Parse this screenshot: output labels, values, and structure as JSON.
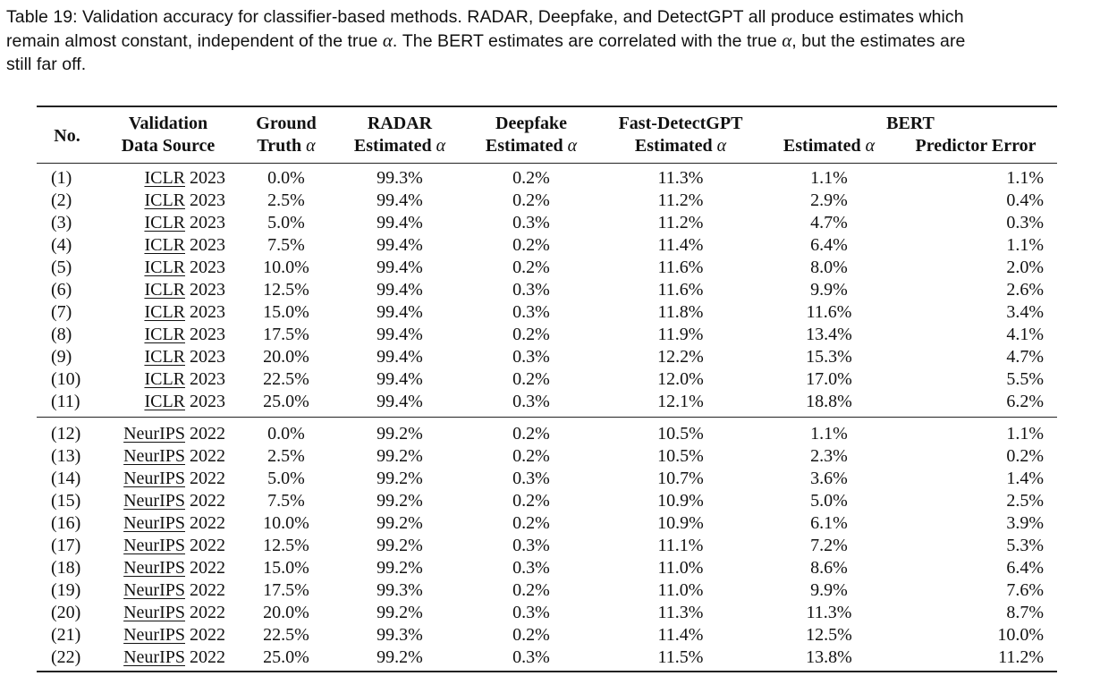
{
  "caption": {
    "line1": "Table 19: Validation accuracy for classifier-based methods. RADAR, Deepfake, and DetectGPT all produce estimates which",
    "line2_a": "remain almost constant, independent of the true ",
    "line2_b": ". The BERT estimates are correlated with the true ",
    "line2_c": ", but the estimates are",
    "line3": "still far off.",
    "alpha": "α"
  },
  "headers": {
    "no": "No.",
    "source_l1": "Validation",
    "source_l2": "Data Source",
    "gt_l1": "Ground",
    "gt_l2": "Truth",
    "radar_l1": "RADAR",
    "radar_l2": "Estimated",
    "deepfake_l1": "Deepfake",
    "deepfake_l2": "Estimated",
    "fast_l1": "Fast-DetectGPT",
    "fast_l2": "Estimated",
    "bert_group": "BERT",
    "bert_est": "Estimated",
    "bert_err": "Predictor Error",
    "alpha": "α"
  },
  "rows_iclr": [
    {
      "no": "(1)",
      "src_u": "ICLR",
      "src_y": " 2023",
      "gt": "0.0%",
      "radar": "99.3%",
      "deepfake": "0.2%",
      "fast": "11.3%",
      "bert_est": "1.1%",
      "bert_err": "1.1%"
    },
    {
      "no": "(2)",
      "src_u": "ICLR",
      "src_y": " 2023",
      "gt": "2.5%",
      "radar": "99.4%",
      "deepfake": "0.2%",
      "fast": "11.2%",
      "bert_est": "2.9%",
      "bert_err": "0.4%"
    },
    {
      "no": "(3)",
      "src_u": "ICLR",
      "src_y": " 2023",
      "gt": "5.0%",
      "radar": "99.4%",
      "deepfake": "0.3%",
      "fast": "11.2%",
      "bert_est": "4.7%",
      "bert_err": "0.3%"
    },
    {
      "no": "(4)",
      "src_u": "ICLR",
      "src_y": " 2023",
      "gt": "7.5%",
      "radar": "99.4%",
      "deepfake": "0.2%",
      "fast": "11.4%",
      "bert_est": "6.4%",
      "bert_err": "1.1%"
    },
    {
      "no": "(5)",
      "src_u": "ICLR",
      "src_y": " 2023",
      "gt": "10.0%",
      "radar": "99.4%",
      "deepfake": "0.2%",
      "fast": "11.6%",
      "bert_est": "8.0%",
      "bert_err": "2.0%"
    },
    {
      "no": "(6)",
      "src_u": "ICLR",
      "src_y": " 2023",
      "gt": "12.5%",
      "radar": "99.4%",
      "deepfake": "0.3%",
      "fast": "11.6%",
      "bert_est": "9.9%",
      "bert_err": "2.6%"
    },
    {
      "no": "(7)",
      "src_u": "ICLR",
      "src_y": " 2023",
      "gt": "15.0%",
      "radar": "99.4%",
      "deepfake": "0.3%",
      "fast": "11.8%",
      "bert_est": "11.6%",
      "bert_err": "3.4%"
    },
    {
      "no": "(8)",
      "src_u": "ICLR",
      "src_y": " 2023",
      "gt": "17.5%",
      "radar": "99.4%",
      "deepfake": "0.2%",
      "fast": "11.9%",
      "bert_est": "13.4%",
      "bert_err": "4.1%"
    },
    {
      "no": "(9)",
      "src_u": "ICLR",
      "src_y": " 2023",
      "gt": "20.0%",
      "radar": "99.4%",
      "deepfake": "0.3%",
      "fast": "12.2%",
      "bert_est": "15.3%",
      "bert_err": "4.7%"
    },
    {
      "no": "(10)",
      "src_u": "ICLR",
      "src_y": " 2023",
      "gt": "22.5%",
      "radar": "99.4%",
      "deepfake": "0.2%",
      "fast": "12.0%",
      "bert_est": "17.0%",
      "bert_err": "5.5%"
    },
    {
      "no": "(11)",
      "src_u": "ICLR",
      "src_y": " 2023",
      "gt": "25.0%",
      "radar": "99.4%",
      "deepfake": "0.3%",
      "fast": "12.1%",
      "bert_est": "18.8%",
      "bert_err": "6.2%"
    }
  ],
  "rows_neurips": [
    {
      "no": "(12)",
      "src_u": "NeurIPS",
      "src_y": " 2022",
      "gt": "0.0%",
      "radar": "99.2%",
      "deepfake": "0.2%",
      "fast": "10.5%",
      "bert_est": "1.1%",
      "bert_err": "1.1%"
    },
    {
      "no": "(13)",
      "src_u": "NeurIPS",
      "src_y": " 2022",
      "gt": "2.5%",
      "radar": "99.2%",
      "deepfake": "0.2%",
      "fast": "10.5%",
      "bert_est": "2.3%",
      "bert_err": "0.2%"
    },
    {
      "no": "(14)",
      "src_u": "NeurIPS",
      "src_y": " 2022",
      "gt": "5.0%",
      "radar": "99.2%",
      "deepfake": "0.3%",
      "fast": "10.7%",
      "bert_est": "3.6%",
      "bert_err": "1.4%"
    },
    {
      "no": "(15)",
      "src_u": "NeurIPS",
      "src_y": " 2022",
      "gt": "7.5%",
      "radar": "99.2%",
      "deepfake": "0.2%",
      "fast": "10.9%",
      "bert_est": "5.0%",
      "bert_err": "2.5%"
    },
    {
      "no": "(16)",
      "src_u": "NeurIPS",
      "src_y": " 2022",
      "gt": "10.0%",
      "radar": "99.2%",
      "deepfake": "0.2%",
      "fast": "10.9%",
      "bert_est": "6.1%",
      "bert_err": "3.9%"
    },
    {
      "no": "(17)",
      "src_u": "NeurIPS",
      "src_y": " 2022",
      "gt": "12.5%",
      "radar": "99.2%",
      "deepfake": "0.3%",
      "fast": "11.1%",
      "bert_est": "7.2%",
      "bert_err": "5.3%"
    },
    {
      "no": "(18)",
      "src_u": "NeurIPS",
      "src_y": " 2022",
      "gt": "15.0%",
      "radar": "99.2%",
      "deepfake": "0.3%",
      "fast": "11.0%",
      "bert_est": "8.6%",
      "bert_err": "6.4%"
    },
    {
      "no": "(19)",
      "src_u": "NeurIPS",
      "src_y": " 2022",
      "gt": "17.5%",
      "radar": "99.3%",
      "deepfake": "0.2%",
      "fast": "11.0%",
      "bert_est": "9.9%",
      "bert_err": "7.6%"
    },
    {
      "no": "(20)",
      "src_u": "NeurIPS",
      "src_y": " 2022",
      "gt": "20.0%",
      "radar": "99.2%",
      "deepfake": "0.3%",
      "fast": "11.3%",
      "bert_est": "11.3%",
      "bert_err": "8.7%"
    },
    {
      "no": "(21)",
      "src_u": "NeurIPS",
      "src_y": " 2022",
      "gt": "22.5%",
      "radar": "99.3%",
      "deepfake": "0.2%",
      "fast": "11.4%",
      "bert_est": "12.5%",
      "bert_err": "10.0%"
    },
    {
      "no": "(22)",
      "src_u": "NeurIPS",
      "src_y": " 2022",
      "gt": "25.0%",
      "radar": "99.2%",
      "deepfake": "0.3%",
      "fast": "11.5%",
      "bert_est": "13.8%",
      "bert_err": "11.2%"
    }
  ]
}
